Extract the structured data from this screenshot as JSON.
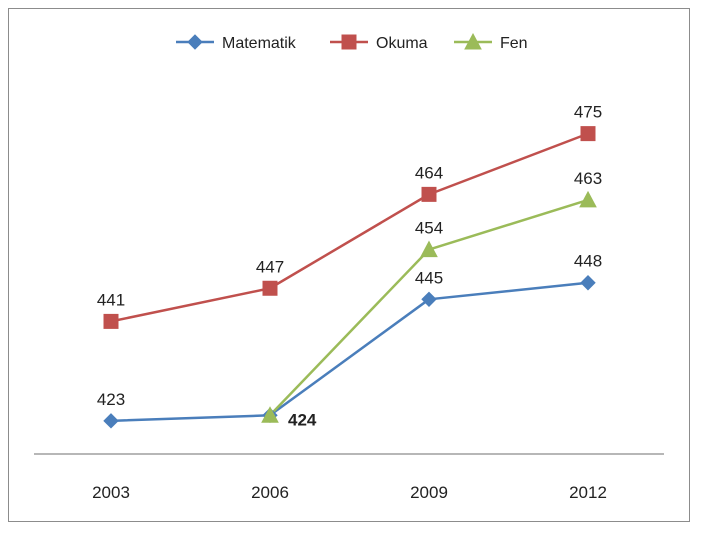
{
  "chart_data": {
    "type": "line",
    "title": "",
    "xlabel": "",
    "ylabel": "",
    "categories": [
      "2003",
      "2006",
      "2009",
      "2012"
    ],
    "ylim": [
      415,
      480
    ],
    "grid": false,
    "legend_position": "top-center",
    "series": [
      {
        "name": "Matematik",
        "values": [
          423,
          424,
          445,
          448
        ],
        "labels": [
          "423",
          "424",
          "445",
          "448"
        ],
        "color": "#4a7ebb",
        "marker": "diamond"
      },
      {
        "name": "Okuma",
        "values": [
          441,
          447,
          464,
          475
        ],
        "labels": [
          "441",
          "447",
          "464",
          "475"
        ],
        "color": "#c0504d",
        "marker": "square"
      },
      {
        "name": "Fen",
        "values": [
          null,
          424,
          454,
          463
        ],
        "labels": [
          "",
          "",
          "454",
          "463"
        ],
        "color": "#9bbb59",
        "marker": "triangle"
      }
    ]
  }
}
